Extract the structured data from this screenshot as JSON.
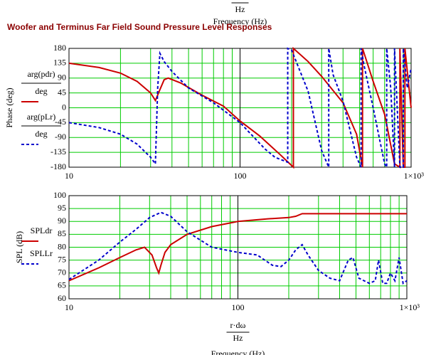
{
  "chart_data": [
    {
      "type": "line",
      "title": "Woofer and Terminus Far Field Sound Pressure Level Responses",
      "xunit_above": "Hz",
      "xlabel_above": "Frequency (Hz)",
      "ylabel": "Phase (deg)",
      "legend_unit": "deg",
      "xlog": true,
      "xlim": [
        10,
        1000
      ],
      "xticks": [
        10,
        100,
        {
          "value": 1000,
          "label": "1×10³"
        }
      ],
      "xgrid": [
        10,
        20,
        30,
        40,
        50,
        60,
        70,
        80,
        90,
        100,
        200,
        300,
        400,
        500,
        600,
        700,
        800,
        900,
        1000
      ],
      "ylim": [
        -180,
        180
      ],
      "yticks": [
        -180,
        -135,
        -90,
        -45,
        0,
        45,
        90,
        135,
        180
      ],
      "grid": true,
      "series": [
        {
          "name": "arg(pdr)",
          "color": "#cc0000",
          "dash": false,
          "x": [
            10,
            15,
            20,
            25,
            30,
            32,
            34,
            36,
            38,
            45,
            60,
            80,
            100,
            130,
            170,
            205,
            205,
            250,
            300,
            400,
            480,
            520,
            520,
            600,
            700,
            800,
            860,
            860,
            900,
            920,
            920,
            1000
          ],
          "values": [
            135,
            122,
            105,
            80,
            45,
            22,
            55,
            85,
            90,
            75,
            38,
            5,
            -40,
            -85,
            -140,
            -180,
            180,
            140,
            95,
            15,
            -80,
            -180,
            180,
            80,
            -20,
            -170,
            -180,
            180,
            -180,
            -180,
            180,
            0
          ]
        },
        {
          "name": "arg(pLr)",
          "color": "#0000cc",
          "dash": true,
          "x": [
            10,
            15,
            20,
            25,
            30,
            32,
            33,
            34,
            36,
            40,
            50,
            70,
            100,
            140,
            160,
            190,
            190,
            200,
            250,
            300,
            330,
            330,
            350,
            400,
            480,
            510,
            510,
            530,
            600,
            700,
            720,
            720,
            760,
            800,
            800,
            860,
            900,
            900,
            950,
            1000
          ],
          "values": [
            -45,
            -60,
            -80,
            -110,
            -150,
            -170,
            60,
            165,
            140,
            110,
            60,
            15,
            -45,
            -125,
            -150,
            -165,
            180,
            175,
            50,
            -130,
            -180,
            180,
            100,
            20,
            -150,
            -180,
            180,
            130,
            0,
            -170,
            -180,
            180,
            60,
            -180,
            180,
            -180,
            -180,
            180,
            60,
            120
          ]
        }
      ]
    },
    {
      "type": "line",
      "xlabel_numerator": "r·dω",
      "xunit": "Hz",
      "xlabel": "Frequency (Hz)",
      "ylabel": "SPL (dB)",
      "xlog": true,
      "xlim": [
        10,
        1000
      ],
      "xticks": [
        10,
        100,
        {
          "value": 1000,
          "label": "1×10³"
        }
      ],
      "xgrid": [
        10,
        20,
        30,
        40,
        50,
        60,
        70,
        80,
        90,
        100,
        200,
        300,
        400,
        500,
        600,
        700,
        800,
        900,
        1000
      ],
      "ylim": [
        60,
        100
      ],
      "yticks": [
        60,
        65,
        70,
        75,
        80,
        85,
        90,
        95,
        100
      ],
      "grid": true,
      "series": [
        {
          "name": "SPLdr",
          "color": "#cc0000",
          "dash": false,
          "x": [
            10,
            15,
            20,
            25,
            28,
            31,
            33,
            34,
            35,
            37,
            40,
            50,
            70,
            100,
            150,
            200,
            220,
            240,
            300,
            500,
            700,
            1000
          ],
          "values": [
            67,
            72,
            76,
            79,
            80,
            77,
            72,
            70,
            73,
            78,
            81,
            85,
            88,
            90,
            91,
            91.5,
            92,
            93,
            93,
            93,
            93,
            93
          ]
        },
        {
          "name": "SPLLr",
          "color": "#0000cc",
          "dash": true,
          "x": [
            10,
            15,
            20,
            25,
            30,
            35,
            40,
            50,
            70,
            100,
            130,
            160,
            180,
            200,
            220,
            240,
            260,
            300,
            350,
            400,
            450,
            480,
            520,
            600,
            650,
            680,
            720,
            760,
            800,
            850,
            900,
            950,
            1000
          ],
          "values": [
            67.5,
            75,
            82,
            87,
            91.5,
            93.5,
            92,
            86,
            80,
            78,
            77,
            73,
            72.5,
            75,
            79,
            81,
            77,
            71,
            68,
            67,
            75,
            76,
            68,
            66,
            67,
            75,
            66,
            66,
            70,
            67,
            76,
            66,
            67
          ]
        }
      ]
    }
  ]
}
